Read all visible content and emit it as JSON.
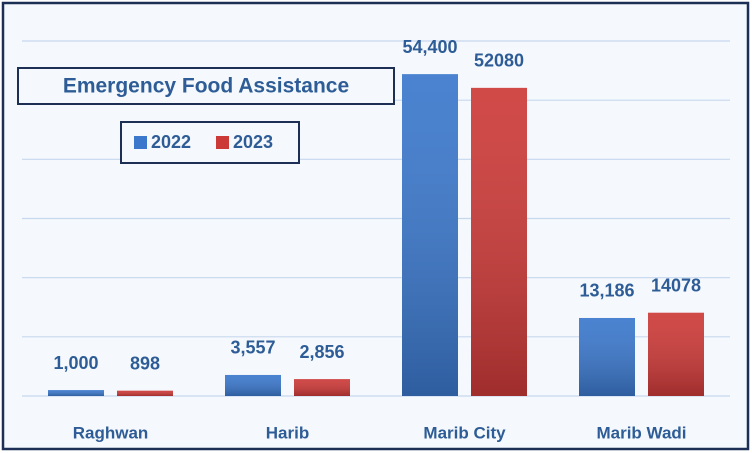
{
  "chart_data": {
    "type": "bar",
    "title": "Emergency Food Assistance",
    "categories": [
      "Raghwan",
      "Harib",
      "Marib City",
      "Marib Wadi"
    ],
    "series": [
      {
        "name": "2022",
        "color": "#3b78cc",
        "values": [
          1000,
          3557,
          54400,
          13186
        ],
        "value_labels": [
          "1,000",
          "3,557",
          "54,400",
          "13,186"
        ]
      },
      {
        "name": "2023",
        "color": "#cc3a38",
        "values": [
          898,
          2856,
          52080,
          14078
        ],
        "value_labels": [
          "898",
          "2,856",
          "52080",
          "14078"
        ]
      }
    ],
    "ylim": [
      0,
      60000
    ],
    "yticks": [
      0,
      10000,
      20000,
      30000,
      40000,
      50000,
      60000
    ],
    "grid": true
  }
}
